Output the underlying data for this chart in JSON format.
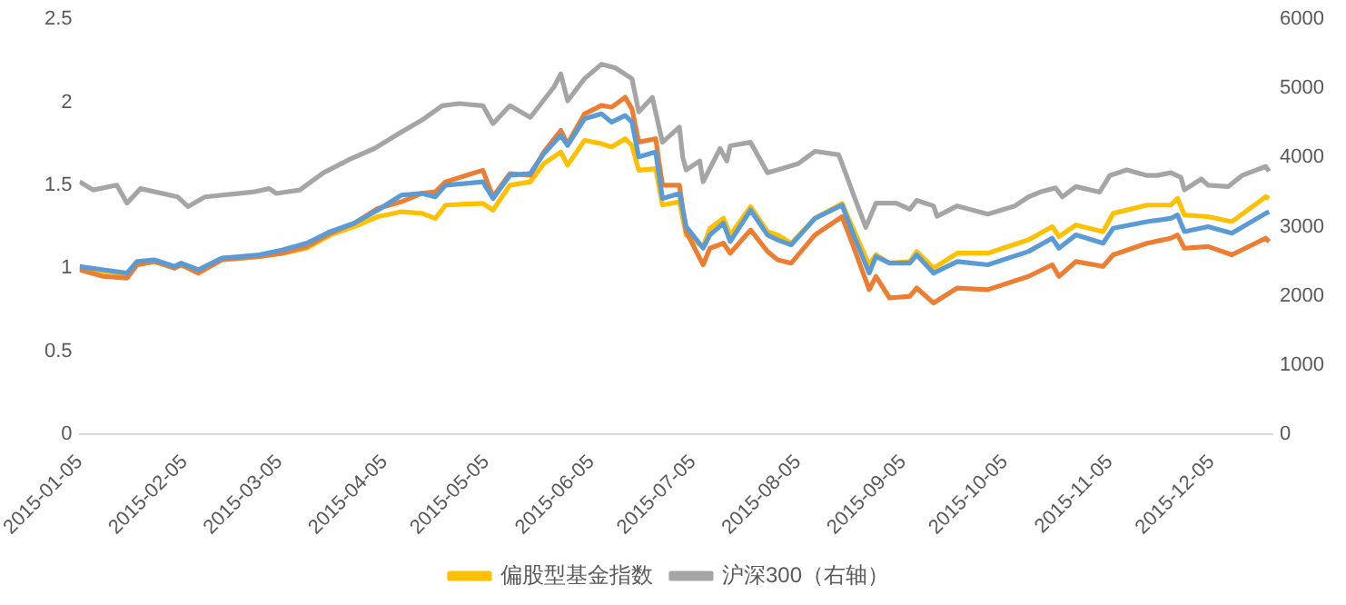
{
  "chart_data": {
    "type": "line",
    "legend": "bottom",
    "grid": false,
    "marker": "none",
    "line_style": "solid",
    "x": [
      "2015-01-05",
      "2015-01-12",
      "2015-01-19",
      "2015-01-22",
      "2015-01-27",
      "2015-02-02",
      "2015-02-04",
      "2015-02-09",
      "2015-02-16",
      "2015-02-27",
      "2015-03-06",
      "2015-03-13",
      "2015-03-20",
      "2015-03-27",
      "2015-04-03",
      "2015-04-10",
      "2015-04-16",
      "2015-04-20",
      "2015-04-23",
      "2015-05-04",
      "2015-05-07",
      "2015-05-12",
      "2015-05-18",
      "2015-05-22",
      "2015-05-27",
      "2015-05-29",
      "2015-06-03",
      "2015-06-08",
      "2015-06-11",
      "2015-06-15",
      "2015-06-17",
      "2015-06-19",
      "2015-06-24",
      "2015-06-26",
      "2015-07-01",
      "2015-07-03",
      "2015-07-08",
      "2015-07-10",
      "2015-07-14",
      "2015-07-16",
      "2015-07-22",
      "2015-07-27",
      "2015-07-30",
      "2015-08-03",
      "2015-08-10",
      "2015-08-18",
      "2015-08-21",
      "2015-08-26",
      "2015-08-28",
      "2015-09-01",
      "2015-09-07",
      "2015-09-09",
      "2015-09-14",
      "2015-09-21",
      "2015-09-30",
      "2015-10-12",
      "2015-10-19",
      "2015-10-21",
      "2015-10-26",
      "2015-11-03",
      "2015-11-06",
      "2015-11-16",
      "2015-11-23",
      "2015-11-25",
      "2015-11-27",
      "2015-12-04",
      "2015-12-11",
      "2015-12-21",
      "2015-12-22"
    ],
    "xlim": [
      "2015-01-05",
      "2015-12-23"
    ],
    "xticks": [
      "2015-01-05",
      "2015-02-05",
      "2015-03-05",
      "2015-04-05",
      "2015-05-05",
      "2015-06-05",
      "2015-07-05",
      "2015-08-05",
      "2015-09-05",
      "2015-10-05",
      "2015-11-05",
      "2015-12-05"
    ],
    "ylim": [
      0,
      2.5
    ],
    "yticks": [
      0,
      0.5,
      1,
      1.5,
      2,
      2.5
    ],
    "y2lim": [
      0,
      6000
    ],
    "y2ticks": [
      0,
      1000,
      2000,
      3000,
      4000,
      5000,
      6000
    ],
    "series": [
      {
        "color": "#5b9bd5",
        "values": [
          1.01,
          0.99,
          0.97,
          1.04,
          1.05,
          1.01,
          1.03,
          0.99,
          1.06,
          1.08,
          1.11,
          1.15,
          1.22,
          1.27,
          1.35,
          1.44,
          1.45,
          1.43,
          1.5,
          1.52,
          1.42,
          1.56,
          1.57,
          1.69,
          1.8,
          1.74,
          1.9,
          1.93,
          1.88,
          1.92,
          1.88,
          1.67,
          1.7,
          1.42,
          1.45,
          1.25,
          1.12,
          1.2,
          1.27,
          1.16,
          1.35,
          1.2,
          1.17,
          1.14,
          1.3,
          1.38,
          1.22,
          0.97,
          1.07,
          1.03,
          1.03,
          1.08,
          0.97,
          1.04,
          1.02,
          1.1,
          1.18,
          1.12,
          1.2,
          1.15,
          1.24,
          1.28,
          1.3,
          1.32,
          1.22,
          1.25,
          1.21,
          1.33,
          1.34
        ]
      },
      {
        "color": "#ed7d31",
        "values": [
          0.99,
          0.95,
          0.94,
          1.02,
          1.04,
          1.0,
          1.02,
          0.97,
          1.05,
          1.07,
          1.09,
          1.13,
          1.21,
          1.27,
          1.36,
          1.4,
          1.45,
          1.46,
          1.52,
          1.59,
          1.43,
          1.57,
          1.56,
          1.7,
          1.83,
          1.75,
          1.93,
          1.98,
          1.97,
          2.03,
          1.96,
          1.76,
          1.78,
          1.5,
          1.5,
          1.22,
          1.02,
          1.12,
          1.15,
          1.09,
          1.23,
          1.1,
          1.05,
          1.03,
          1.2,
          1.31,
          1.15,
          0.87,
          0.95,
          0.82,
          0.83,
          0.88,
          0.79,
          0.88,
          0.87,
          0.95,
          1.02,
          0.95,
          1.04,
          1.01,
          1.08,
          1.15,
          1.18,
          1.2,
          1.12,
          1.13,
          1.08,
          1.18,
          1.16
        ]
      },
      {
        "name": "偏股型基金指数",
        "color": "#ffc000",
        "values": [
          1.0,
          0.98,
          0.96,
          1.02,
          1.04,
          1.0,
          1.02,
          0.98,
          1.05,
          1.07,
          1.09,
          1.12,
          1.2,
          1.25,
          1.31,
          1.34,
          1.33,
          1.3,
          1.38,
          1.39,
          1.35,
          1.5,
          1.52,
          1.63,
          1.7,
          1.62,
          1.77,
          1.75,
          1.73,
          1.78,
          1.74,
          1.59,
          1.6,
          1.38,
          1.4,
          1.2,
          1.13,
          1.24,
          1.3,
          1.2,
          1.37,
          1.22,
          1.2,
          1.15,
          1.3,
          1.39,
          1.25,
          1.02,
          1.08,
          1.03,
          1.04,
          1.1,
          1.0,
          1.09,
          1.09,
          1.17,
          1.25,
          1.19,
          1.26,
          1.22,
          1.33,
          1.38,
          1.38,
          1.42,
          1.32,
          1.31,
          1.28,
          1.43,
          1.42
        ]
      },
      {
        "name": "沪深300（右轴）",
        "color": "#a5a5a5",
        "axis": "y2",
        "x": [
          "2015-01-05",
          "2015-01-09",
          "2015-01-16",
          "2015-01-19",
          "2015-01-23",
          "2015-02-03",
          "2015-02-06",
          "2015-02-11",
          "2015-02-25",
          "2015-03-02",
          "2015-03-04",
          "2015-03-11",
          "2015-03-18",
          "2015-03-26",
          "2015-04-02",
          "2015-04-09",
          "2015-04-16",
          "2015-04-22",
          "2015-04-27",
          "2015-05-04",
          "2015-05-07",
          "2015-05-12",
          "2015-05-18",
          "2015-05-25",
          "2015-05-27",
          "2015-05-29",
          "2015-06-03",
          "2015-06-08",
          "2015-06-12",
          "2015-06-17",
          "2015-06-19",
          "2015-06-23",
          "2015-06-26",
          "2015-07-01",
          "2015-07-02",
          "2015-07-03",
          "2015-07-07",
          "2015-07-08",
          "2015-07-13",
          "2015-07-15",
          "2015-07-16",
          "2015-07-22",
          "2015-07-27",
          "2015-07-30",
          "2015-08-05",
          "2015-08-10",
          "2015-08-17",
          "2015-08-19",
          "2015-08-21",
          "2015-08-25",
          "2015-08-28",
          "2015-09-03",
          "2015-09-07",
          "2015-09-09",
          "2015-09-14",
          "2015-09-15",
          "2015-09-21",
          "2015-09-30",
          "2015-10-08",
          "2015-10-12",
          "2015-10-16",
          "2015-10-20",
          "2015-10-22",
          "2015-10-26",
          "2015-11-02",
          "2015-11-05",
          "2015-11-10",
          "2015-11-16",
          "2015-11-19",
          "2015-11-23",
          "2015-11-26",
          "2015-11-27",
          "2015-12-02",
          "2015-12-04",
          "2015-12-10",
          "2015-12-14",
          "2015-12-21",
          "2015-12-22"
        ],
        "values": [
          3650,
          3530,
          3600,
          3340,
          3550,
          3430,
          3290,
          3430,
          3500,
          3550,
          3480,
          3530,
          3780,
          3980,
          4130,
          4340,
          4540,
          4750,
          4780,
          4750,
          4490,
          4750,
          4580,
          5020,
          5210,
          4820,
          5140,
          5350,
          5300,
          5140,
          4660,
          4870,
          4220,
          4440,
          4000,
          3820,
          3950,
          3650,
          4130,
          3950,
          4170,
          4220,
          3780,
          3820,
          3910,
          4090,
          4040,
          3780,
          3510,
          2990,
          3340,
          3340,
          3250,
          3380,
          3300,
          3150,
          3300,
          3180,
          3300,
          3430,
          3510,
          3560,
          3430,
          3580,
          3500,
          3740,
          3820,
          3740,
          3740,
          3780,
          3710,
          3530,
          3690,
          3600,
          3580,
          3740,
          3870,
          3800
        ]
      }
    ]
  }
}
